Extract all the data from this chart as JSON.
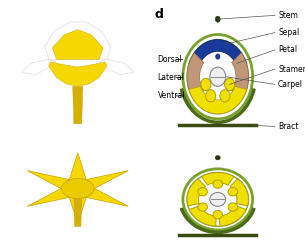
{
  "fig_width": 3.05,
  "fig_height": 2.48,
  "dpi": 100,
  "colors": {
    "black": "#000000",
    "white": "#ffffff",
    "yellow_petal": "#f5d800",
    "yellow_edge": "#c8a000",
    "stem_yellow": "#d4b000",
    "sepal_blue": "#1a3a9a",
    "sepal_blue_edge": "#0a2060",
    "lateral_brown": "#c09878",
    "lateral_brown_edge": "#907050",
    "stamen_yellow": "#f0e000",
    "stamen_edge": "#b0a000",
    "carpel_fill": "#f0f0f0",
    "carpel_edge": "#888888",
    "green_ring": "#7aa030",
    "green_ring_dark": "#4a6a18",
    "bract_dark": "#3a4a10",
    "stem_dot": "#2a3a10",
    "blue_dot": "#1a3a9a",
    "label_color": "#000000",
    "line_color": "#555555"
  },
  "labels_right": [
    "Stem",
    "Sepal",
    "Petal",
    "Stamen",
    "Carpel",
    "Bract"
  ],
  "labels_left": [
    "Dorsal",
    "Lateral",
    "Ventral"
  ]
}
